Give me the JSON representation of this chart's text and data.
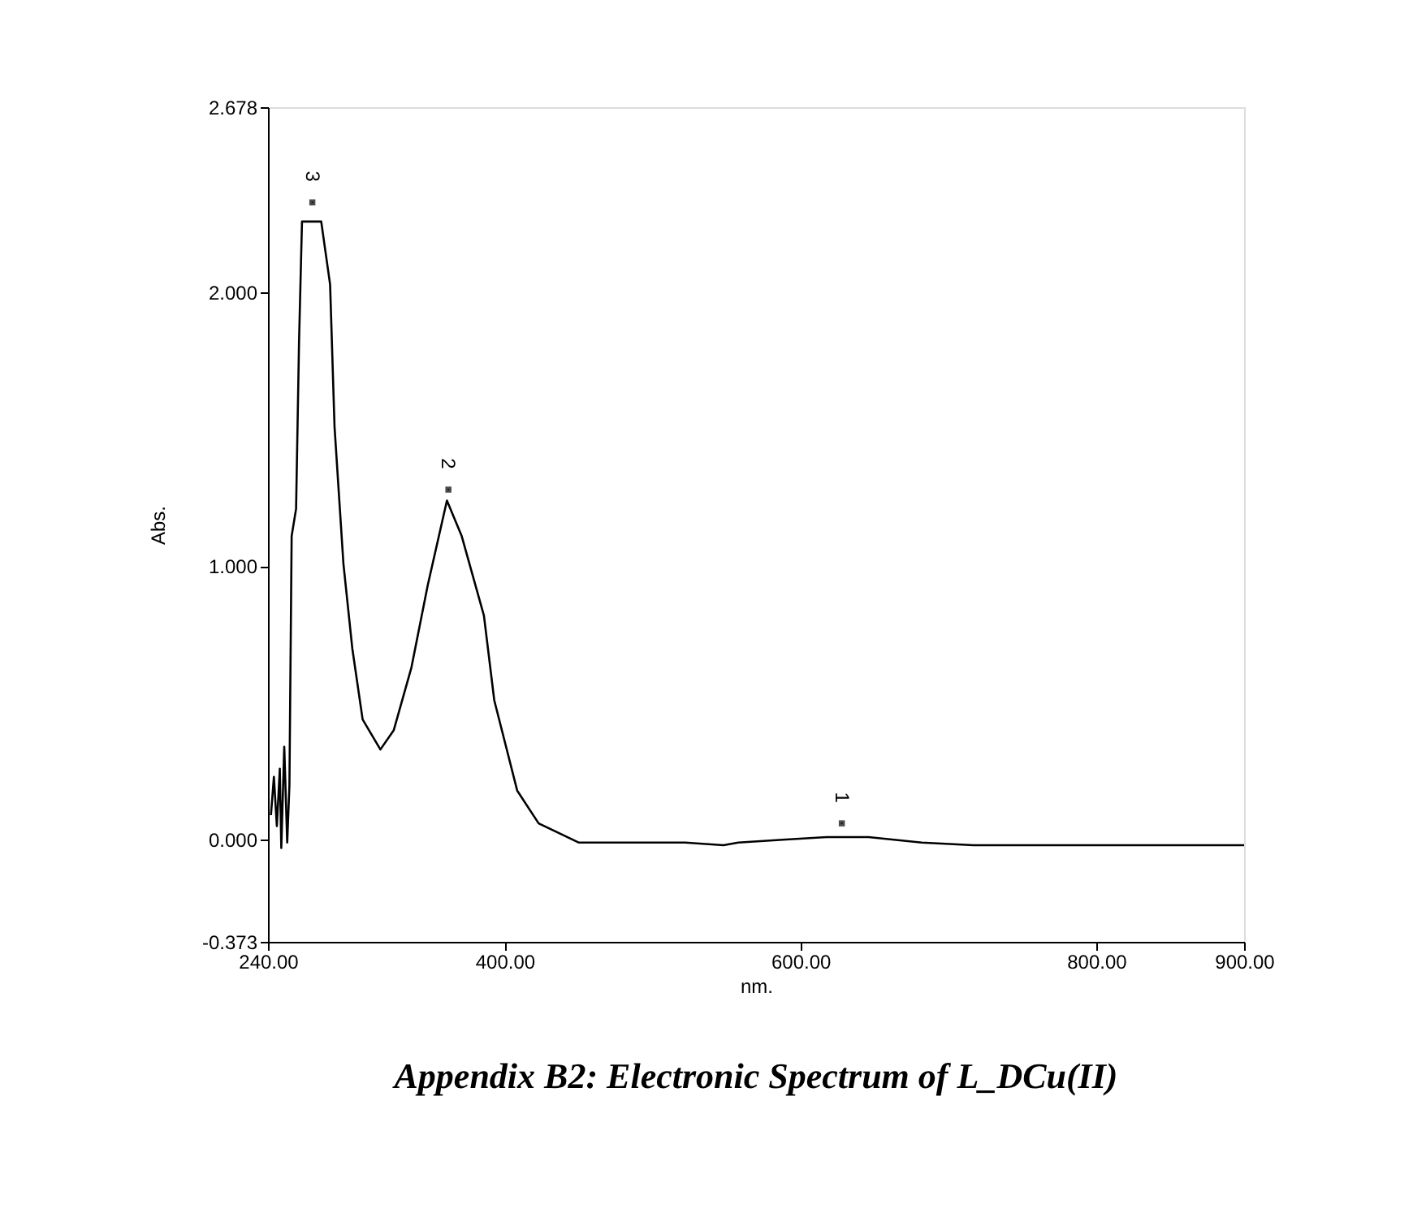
{
  "chart_data": {
    "type": "line",
    "xlabel": "nm.",
    "ylabel": "Abs.",
    "annotations": [
      {
        "text": "3",
        "x": 270,
        "y": 2.33
      },
      {
        "text": "2",
        "x": 362,
        "y": 1.28
      },
      {
        "text": "1",
        "x": 628,
        "y": 0.06
      },
      "Appendix B2: Electronic Spectrum of L_DCu(II)"
    ],
    "x": [
      242,
      244,
      246,
      248,
      249,
      251,
      253,
      254.5,
      256,
      259,
      261,
      263,
      276,
      282,
      285,
      291,
      297,
      304,
      316,
      325,
      337,
      348,
      361,
      371,
      386,
      393,
      408.5,
      423,
      450,
      522,
      548,
      558,
      588,
      618,
      646,
      682,
      717,
      900
    ],
    "series": [
      {
        "color": "#000000",
        "values": [
          0.09,
          0.23,
          0.05,
          0.26,
          -0.03,
          0.34,
          -0.01,
          0.2,
          1.11,
          1.21,
          1.82,
          2.26,
          2.26,
          2.03,
          1.51,
          1.01,
          0.7,
          0.44,
          0.33,
          0.4,
          0.63,
          0.93,
          1.24,
          1.11,
          0.82,
          0.51,
          0.18,
          0.06,
          -0.01,
          -0.01,
          -0.02,
          -0.01,
          0.0,
          0.01,
          0.01,
          -0.01,
          -0.02,
          -0.02
        ]
      }
    ],
    "xlim": [
      240,
      900
    ],
    "xticks": [
      {
        "value": 240,
        "label": "240.00"
      },
      {
        "value": 400,
        "label": "400.00"
      },
      {
        "value": 600,
        "label": "600.00"
      },
      {
        "value": 800,
        "label": "800.00"
      },
      {
        "value": 900,
        "label": "900.00"
      }
    ],
    "ylim": [
      -0.373,
      2.678
    ],
    "yticks": [
      {
        "value": -0.373,
        "label": "-0.373"
      },
      {
        "value": 0,
        "label": "0.000"
      },
      {
        "value": 1,
        "label": "1.000"
      },
      {
        "value": 2,
        "label": "2.000"
      },
      {
        "value": 2.678,
        "label": "2.678"
      }
    ],
    "grid": false,
    "marker": "none",
    "line_style": "solid"
  }
}
